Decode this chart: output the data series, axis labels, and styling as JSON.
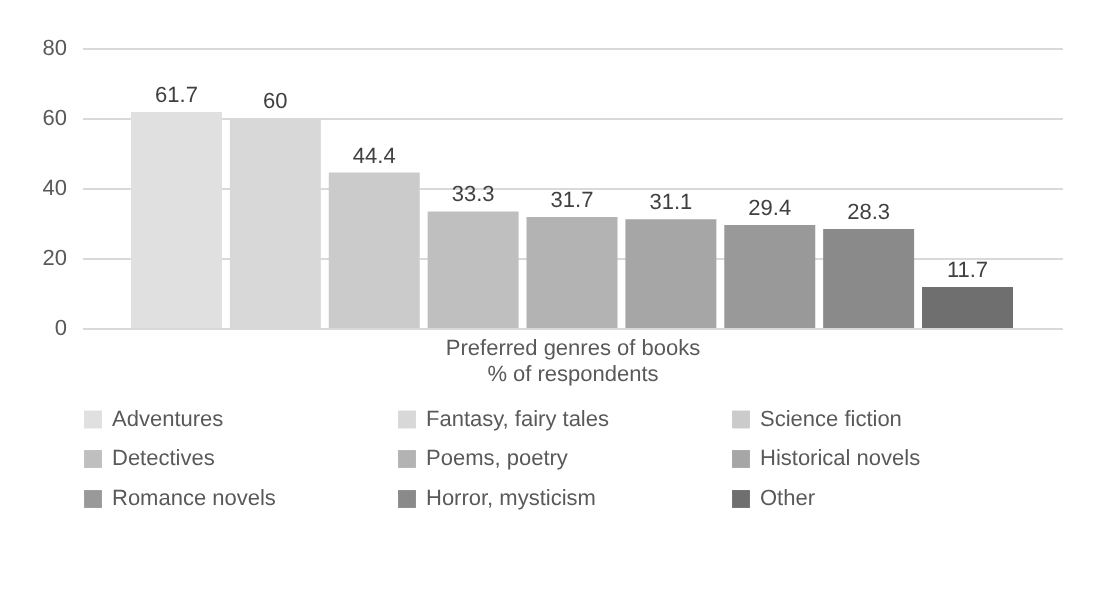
{
  "chart_data": {
    "type": "bar",
    "categories": [
      null
    ],
    "xlabel": "Preferred genres of books\n% of respondents",
    "ylim": [
      0,
      80
    ],
    "yticks": [
      0,
      20,
      40,
      60,
      80
    ],
    "grid": "y",
    "legend": "bottom",
    "data_labels": true,
    "series": [
      {
        "name": "Adventures",
        "color": "#e0e0e0",
        "values": [
          61.7
        ]
      },
      {
        "name": "Fantasy, fairy tales",
        "color": "#d8d8d8",
        "values": [
          60
        ]
      },
      {
        "name": "Science fiction",
        "color": "#cbcbcb",
        "values": [
          44.4
        ]
      },
      {
        "name": "Detectives",
        "color": "#bfbfbf",
        "values": [
          33.3
        ]
      },
      {
        "name": "Poems, poetry",
        "color": "#b3b3b3",
        "values": [
          31.7
        ]
      },
      {
        "name": "Historical novels",
        "color": "#a6a6a6",
        "values": [
          31.1
        ]
      },
      {
        "name": "Romance novels",
        "color": "#999999",
        "values": [
          29.4
        ]
      },
      {
        "name": "Horror, mysticism",
        "color": "#8a8a8a",
        "values": [
          28.3
        ]
      },
      {
        "name": "Other",
        "color": "#6f6f6f",
        "values": [
          11.7
        ]
      }
    ]
  }
}
